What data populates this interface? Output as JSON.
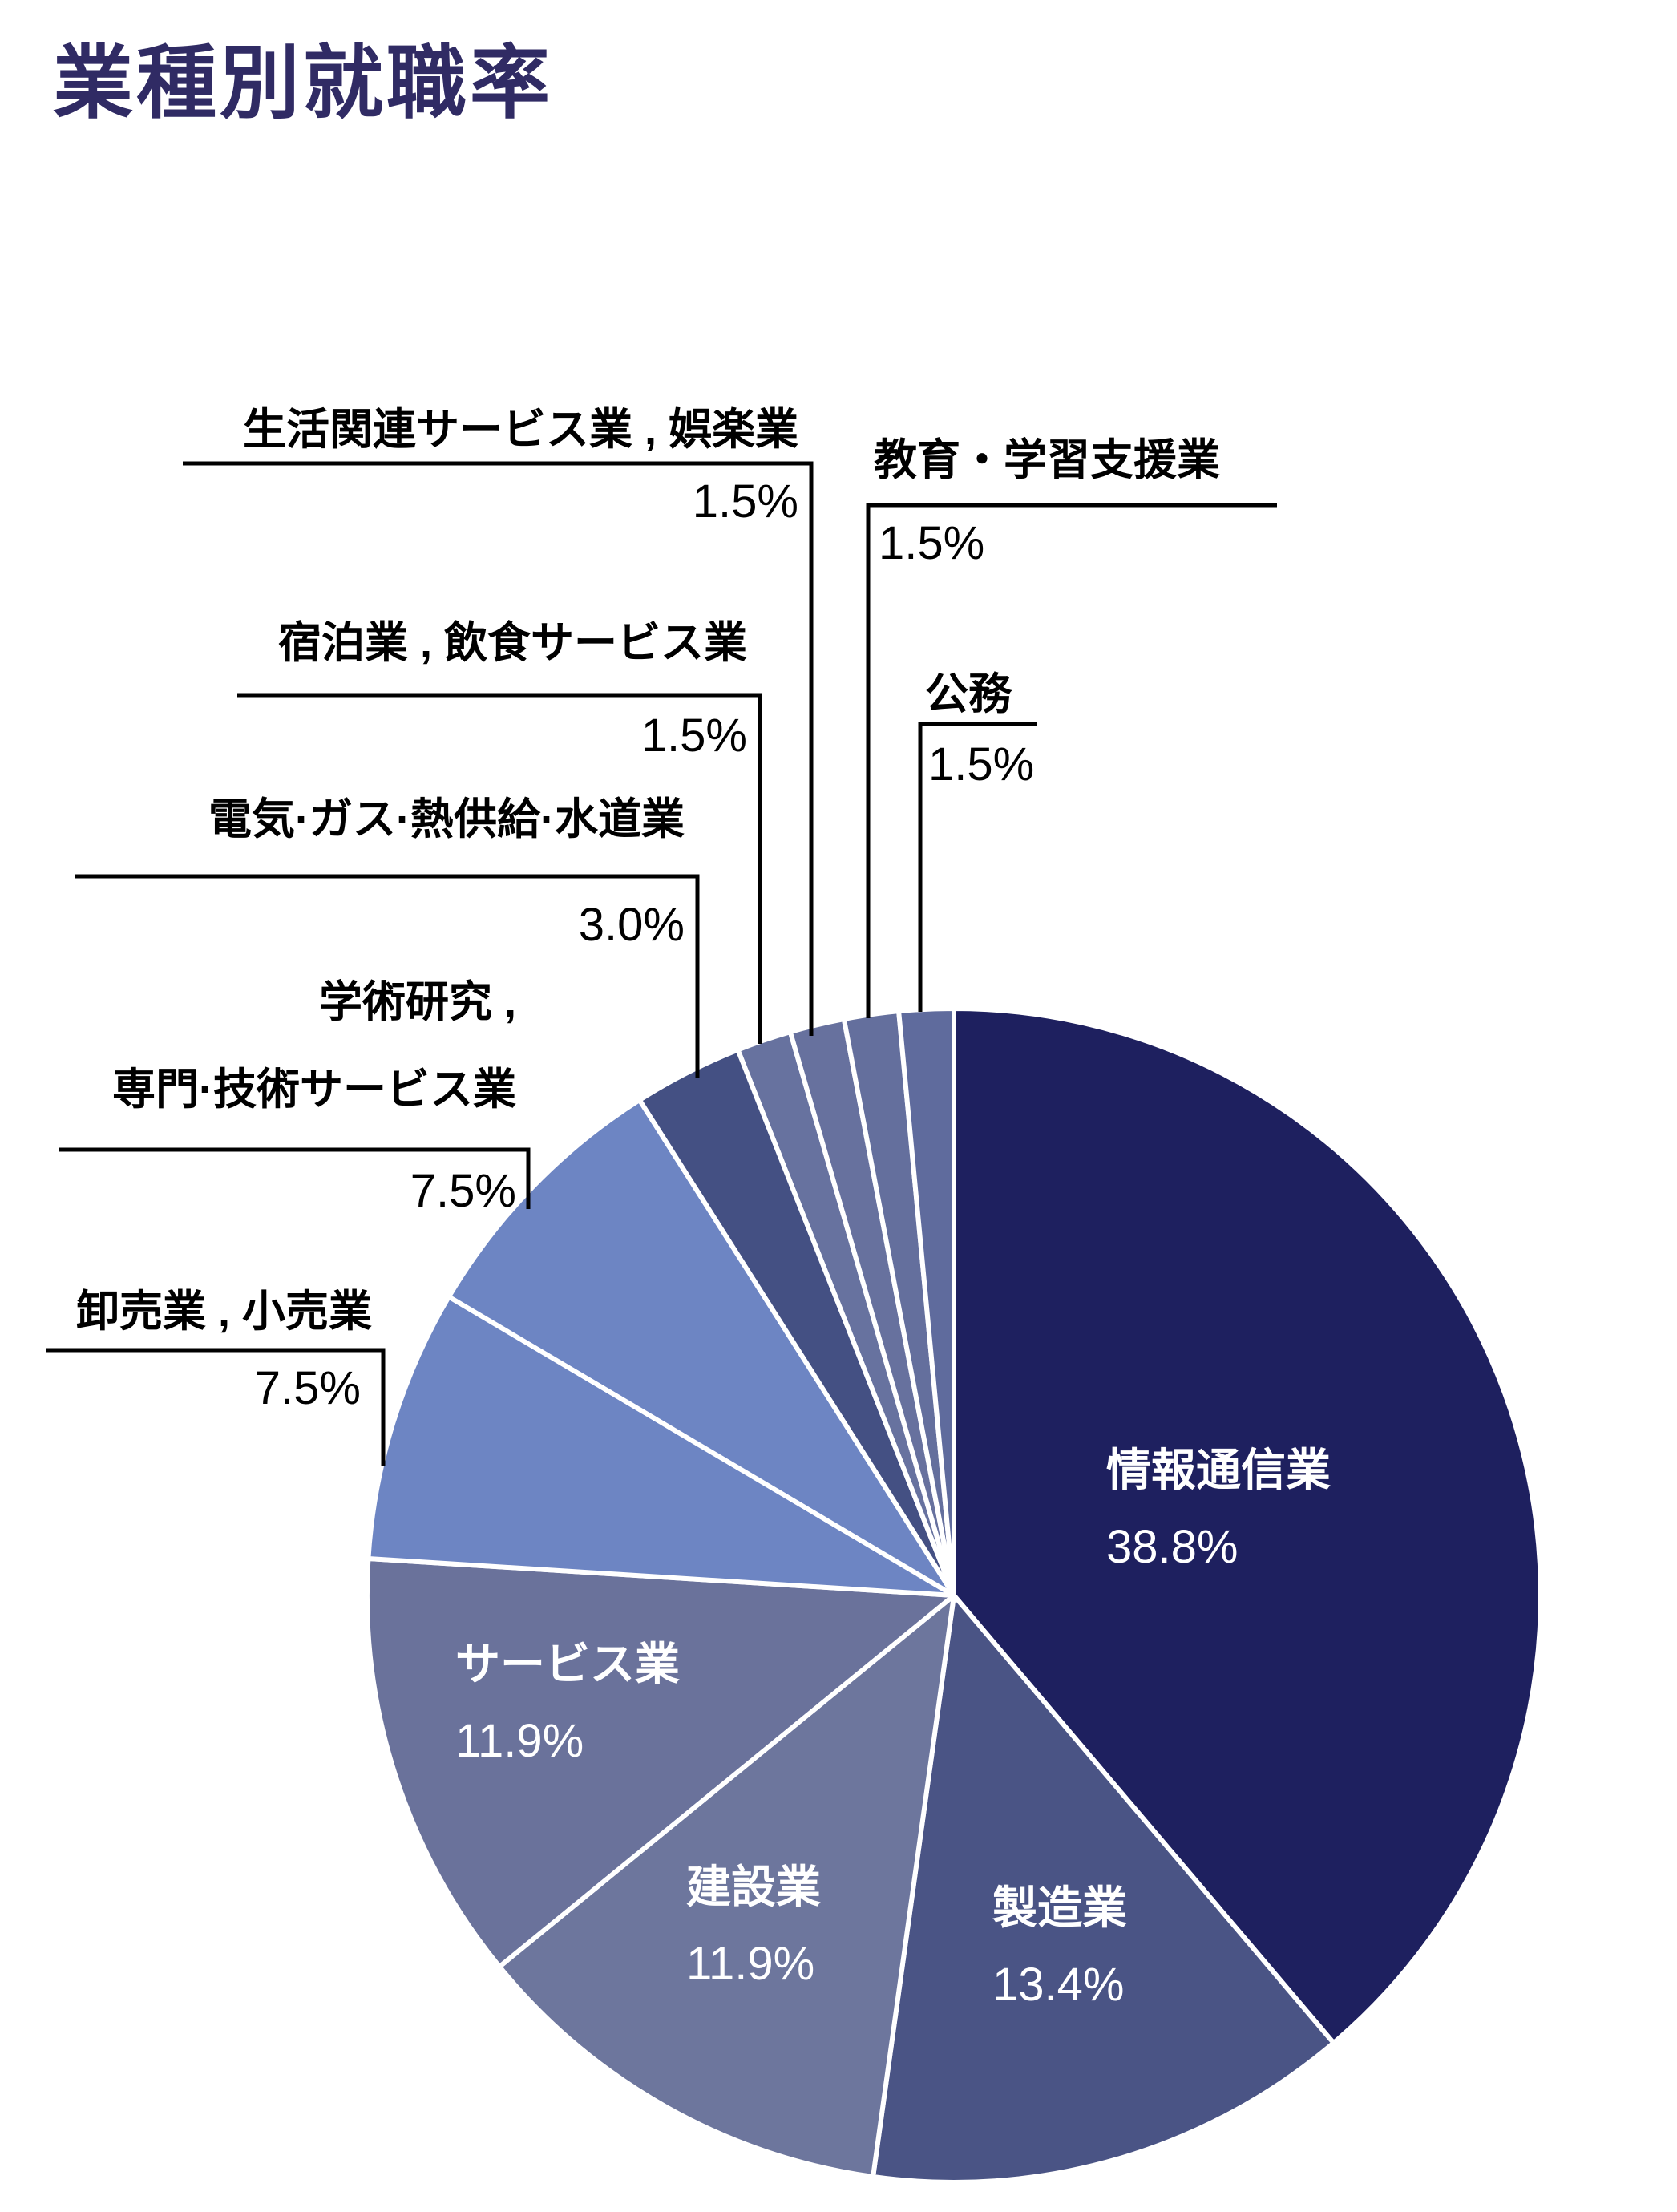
{
  "page": {
    "title": "業種別就職率",
    "background_color": "#ffffff",
    "title_color": "#302b64"
  },
  "chart_data": {
    "type": "pie",
    "title": "業種別就職率",
    "unit": "%",
    "start_angle": "12-oclock",
    "direction": "clockwise",
    "legend": "none",
    "inside_label_color": "#ffffff",
    "callout_label_color": "#000000",
    "leader_line_color": "#000000",
    "slices": [
      {
        "label": "情報通信業",
        "value": 38.8,
        "pct_label": "38.8%",
        "color": "#1e205f",
        "label_position": "inside"
      },
      {
        "label": "製造業",
        "value": 13.4,
        "pct_label": "13.4%",
        "color": "#4a5485",
        "label_position": "inside"
      },
      {
        "label": "建設業",
        "value": 11.9,
        "pct_label": "11.9%",
        "color": "#6d769d",
        "label_position": "inside"
      },
      {
        "label": "サービス業",
        "value": 11.9,
        "pct_label": "11.9%",
        "color": "#6a729b",
        "label_position": "inside"
      },
      {
        "label": "卸売業 , 小売業",
        "value": 7.5,
        "pct_label": "7.5%",
        "color": "#6d85c3",
        "label_position": "callout-left"
      },
      {
        "label": "学術研究 , 専門·技術サービス業",
        "label_lines": [
          "学術研究 ,",
          "専門·技術サービス業"
        ],
        "value": 7.5,
        "pct_label": "7.5%",
        "color": "#6d85c3",
        "label_position": "callout-left"
      },
      {
        "label": "電気·ガス·熱供給·水道業",
        "value": 3.0,
        "pct_label": "3.0%",
        "color": "#445083",
        "label_position": "callout-left"
      },
      {
        "label": "宿泊業 , 飲食サービス業",
        "value": 1.5,
        "pct_label": "1.5%",
        "color": "#67729f",
        "label_position": "callout-left"
      },
      {
        "label": "生活関連サービス業 , 娯楽業",
        "value": 1.5,
        "pct_label": "1.5%",
        "color": "#67719e",
        "label_position": "callout-left"
      },
      {
        "label": "教育・学習支援業",
        "value": 1.5,
        "pct_label": "1.5%",
        "color": "#646f9d",
        "label_position": "callout-right"
      },
      {
        "label": "公務",
        "value": 1.5,
        "pct_label": "1.5%",
        "color": "#5f6b9d",
        "label_position": "callout-right"
      }
    ]
  }
}
